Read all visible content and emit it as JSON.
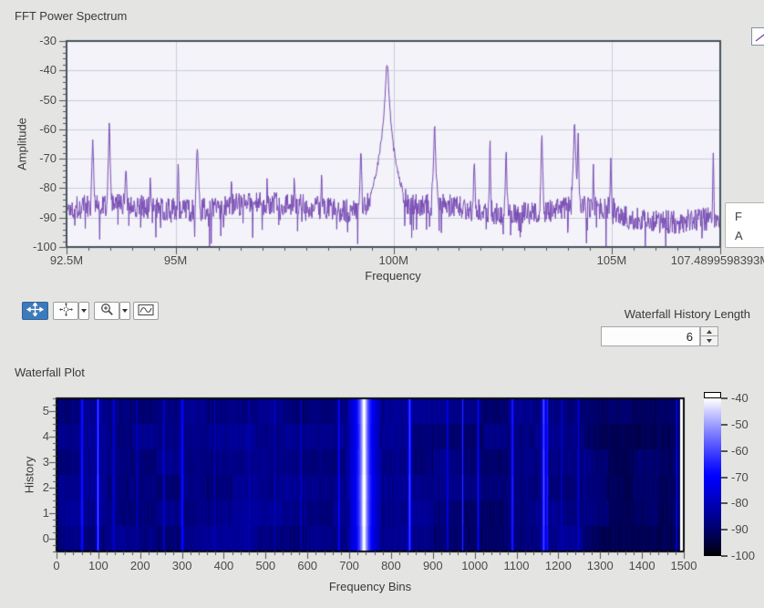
{
  "window": {
    "bg": "#e4e4e3"
  },
  "fft_section": {
    "title": "FFT Power Spectrum"
  },
  "waterfall_section": {
    "title": "Waterfall Plot"
  },
  "toolbar": {
    "tools": [
      {
        "name": "cursor-move-tool",
        "selected": true
      },
      {
        "name": "pan-tool",
        "selected": false,
        "has_dropdown": true
      },
      {
        "name": "zoom-tool",
        "selected": false,
        "has_dropdown": true
      },
      {
        "name": "plot-scale-tool",
        "selected": false
      }
    ]
  },
  "waterfall_control": {
    "label": "Waterfall History Length",
    "value": "6"
  },
  "cursor_readout": {
    "line1": "F",
    "line2": "A"
  },
  "chart_data": [
    {
      "type": "line",
      "title": "FFT Power Spectrum",
      "xlabel": "Frequency",
      "ylabel": "Amplitude",
      "xlim": [
        92.5,
        107.4899598393
      ],
      "ylim": [
        -100,
        -30
      ],
      "x_unit": "MHz",
      "grid": true,
      "legend_position": "top-right",
      "line_color": "#7a4eb5",
      "plot_bg": "#f3f3f9",
      "grid_color": "#c9cfdb",
      "border_color": "#46525e",
      "x_ticks": [
        {
          "v": 92.5,
          "label": "92.5M"
        },
        {
          "v": 95,
          "label": "95M"
        },
        {
          "v": 100,
          "label": "100M"
        },
        {
          "v": 105,
          "label": "105M"
        },
        {
          "v": 107.4899598393,
          "label": "107.4899598393M"
        }
      ],
      "y_ticks": [
        {
          "v": -30,
          "label": "-30"
        },
        {
          "v": -40,
          "label": "-40"
        },
        {
          "v": -50,
          "label": "-50"
        },
        {
          "v": -60,
          "label": "-60"
        },
        {
          "v": -70,
          "label": "-70"
        },
        {
          "v": -80,
          "label": "-80"
        },
        {
          "v": -90,
          "label": "-90"
        },
        {
          "v": -100,
          "label": "-100"
        }
      ],
      "noise_floor_db": -87,
      "noise_pp_db": 8,
      "seed": 1337,
      "peaks": [
        {
          "f": 93.1,
          "db": -64.0,
          "w": 0.015
        },
        {
          "f": 93.48,
          "db": -57.5,
          "w": 0.012
        },
        {
          "f": 93.86,
          "db": -73.0,
          "w": 0.02
        },
        {
          "f": 94.42,
          "db": -76.0,
          "w": 0.014
        },
        {
          "f": 95.06,
          "db": -71.5,
          "w": 0.012
        },
        {
          "f": 95.5,
          "db": -66.0,
          "w": 0.018
        },
        {
          "f": 96.28,
          "db": -76.5,
          "w": 0.012
        },
        {
          "f": 97.1,
          "db": -77.0,
          "w": 0.012
        },
        {
          "f": 97.72,
          "db": -75.5,
          "w": 0.012
        },
        {
          "f": 98.35,
          "db": -74.0,
          "w": 0.012
        },
        {
          "f": 99.25,
          "db": -66.0,
          "w": 0.013
        },
        {
          "f": 99.85,
          "db": -37.5,
          "w": 0.03
        },
        {
          "f": 100.94,
          "db": -59.0,
          "w": 0.016
        },
        {
          "f": 101.85,
          "db": -70.0,
          "w": 0.014
        },
        {
          "f": 102.21,
          "db": -63.5,
          "w": 0.008
        },
        {
          "f": 102.58,
          "db": -68.0,
          "w": 0.013
        },
        {
          "f": 103.4,
          "db": -61.5,
          "w": 0.012
        },
        {
          "f": 104.15,
          "db": -58.5,
          "w": 0.018
        },
        {
          "f": 104.23,
          "db": -60.5,
          "w": 0.01
        },
        {
          "f": 104.58,
          "db": -72.5,
          "w": 0.01
        },
        {
          "f": 104.98,
          "db": -70.5,
          "w": 0.012
        },
        {
          "f": 107.33,
          "db": -67.0,
          "w": 0.008
        }
      ]
    },
    {
      "type": "heatmap",
      "title": "Waterfall Plot",
      "xlabel": "Frequency Bins",
      "ylabel": "History",
      "xlim": [
        0,
        1500
      ],
      "ylim": [
        -0.5,
        5.5
      ],
      "rows": 6,
      "x_ticks": [
        0,
        100,
        200,
        300,
        400,
        500,
        600,
        700,
        800,
        900,
        1000,
        1100,
        1200,
        1300,
        1400,
        1500
      ],
      "y_ticks": [
        0,
        1,
        2,
        3,
        4,
        5
      ],
      "bin_freq_offset_mhz": 92.5,
      "mhz_per_bin": 0.0099933,
      "shares_peaks_of_chart": 0,
      "seed": 77,
      "border_color": "#0a0a0a",
      "z_scale": {
        "min": -100,
        "max": -40,
        "ticks": [
          -40,
          -50,
          -60,
          -70,
          -80,
          -90,
          -100
        ],
        "colors": [
          "#000000",
          "#0000ff",
          "#ffffff"
        ]
      }
    }
  ]
}
